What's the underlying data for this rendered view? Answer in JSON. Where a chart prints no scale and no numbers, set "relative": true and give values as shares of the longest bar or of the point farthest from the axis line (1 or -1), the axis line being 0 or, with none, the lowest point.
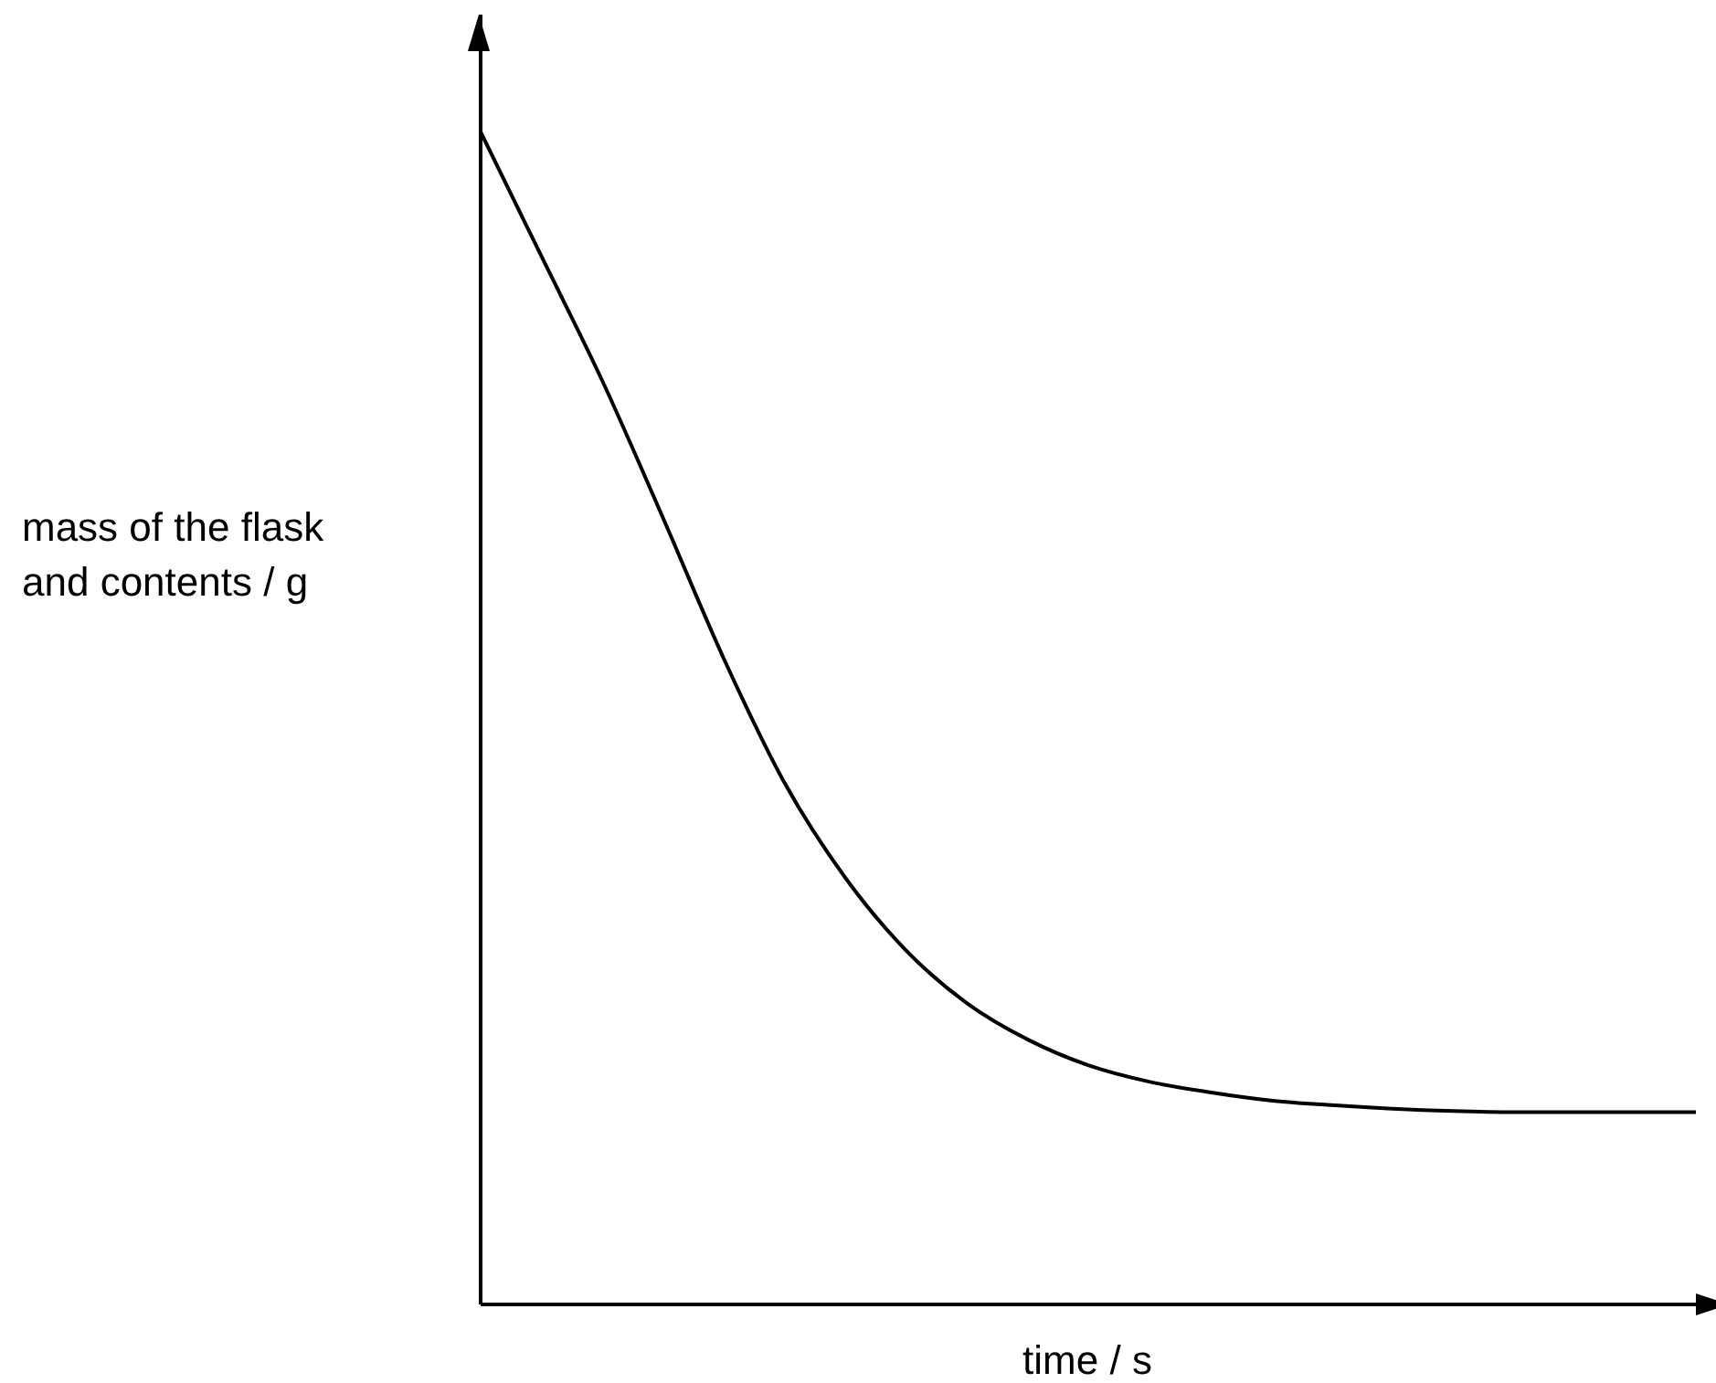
{
  "chart_data": {
    "type": "line",
    "relative": true,
    "xlabel": "time / s",
    "ylabel": "mass of the flask and contents / g",
    "categories": [
      null,
      null,
      null,
      null,
      null,
      null,
      null,
      null,
      null,
      null,
      null,
      null,
      null,
      null,
      null,
      null,
      null,
      null,
      null,
      null,
      null
    ],
    "series": [
      {
        "color": "#000000",
        "values": [
          1,
          0.894,
          0.788,
          0.671,
          0.551,
          0.445,
          0.364,
          0.302,
          0.257,
          0.226,
          0.204,
          0.19,
          0.181,
          0.174,
          0.17,
          0.167,
          0.165,
          0.164,
          0.164,
          0.164,
          0.164
        ]
      }
    ],
    "grid": false,
    "marker": "none",
    "line_style": "solid"
  }
}
